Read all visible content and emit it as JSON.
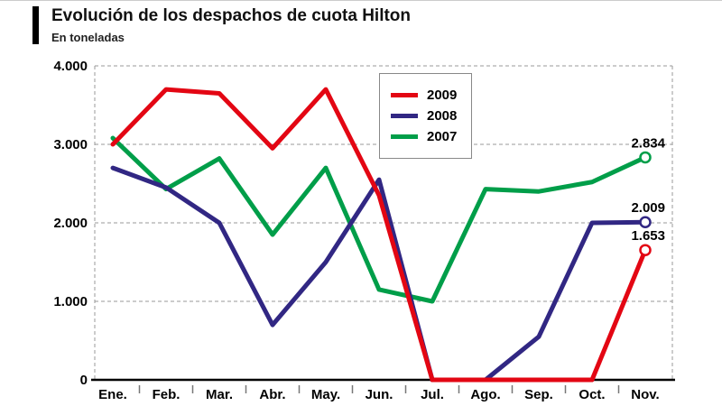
{
  "header": {
    "title": "Evolución de los despachos de cuota Hilton",
    "subtitle": "En toneladas"
  },
  "chart_data": {
    "type": "line",
    "x": [
      "Ene.",
      "Feb.",
      "Mar.",
      "Abr.",
      "May.",
      "Jun.",
      "Jul.",
      "Ago.",
      "Sep.",
      "Oct.",
      "Nov."
    ],
    "ylim": [
      0,
      4000
    ],
    "yticks": [
      0,
      1000,
      2000,
      3000,
      4000
    ],
    "ytick_labels": [
      "0",
      "1.000",
      "2.000",
      "3.000",
      "4.000"
    ],
    "grid": "dashed-horizontal",
    "legend_position": "top-center",
    "series": [
      {
        "name": "2009",
        "color": "#e30613",
        "values": [
          3000,
          3700,
          3650,
          2950,
          3700,
          2350,
          0,
          0,
          0,
          0,
          1653
        ],
        "end_label": "1.653"
      },
      {
        "name": "2008",
        "color": "#312783",
        "values": [
          2700,
          2450,
          2000,
          700,
          1500,
          2550,
          0,
          0,
          550,
          2000,
          2009
        ],
        "end_label": "2.009"
      },
      {
        "name": "2007",
        "color": "#009e49",
        "values": [
          3080,
          2430,
          2820,
          1850,
          2700,
          1150,
          1000,
          2430,
          2400,
          2520,
          2834
        ],
        "end_label": "2.834"
      }
    ]
  },
  "legend": {
    "items": [
      {
        "label": "2009",
        "color": "#e30613"
      },
      {
        "label": "2008",
        "color": "#312783"
      },
      {
        "label": "2007",
        "color": "#009e49"
      }
    ]
  }
}
